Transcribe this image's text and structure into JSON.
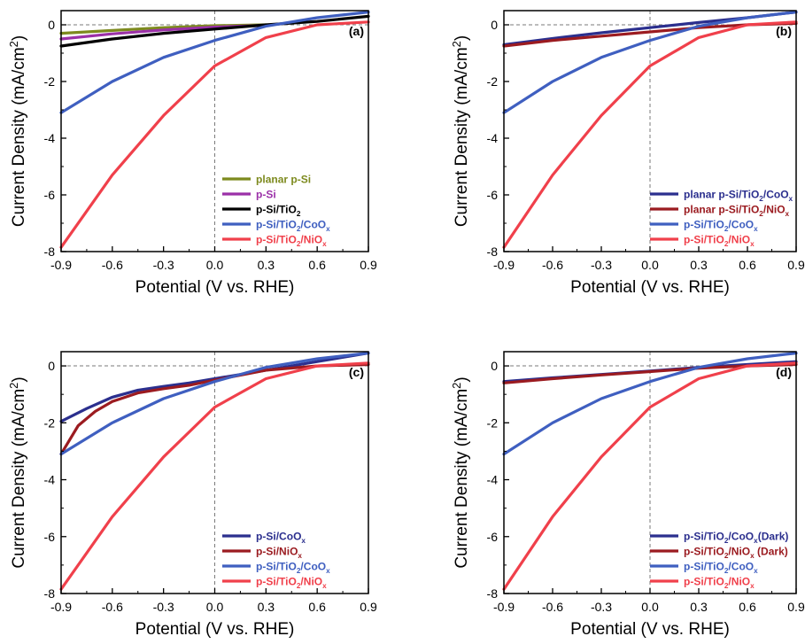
{
  "chart_data": [
    {
      "type": "line",
      "panel_label": "(a)",
      "xlabel": "Potential (V vs. RHE)",
      "ylabel": "Current Density (mA/cm²)",
      "xlim": [
        -0.9,
        0.9
      ],
      "ylim": [
        -8,
        0.5
      ],
      "xticks": [
        "-0.9",
        "-0.6",
        "-0.3",
        "0.0",
        "0.3",
        "0.6",
        "0.9"
      ],
      "yticks": [
        "0",
        "-2",
        "-4",
        "-6",
        "-8"
      ],
      "legend_position": "lower-right",
      "grid": false,
      "series": [
        {
          "name": "planar p-Si",
          "color": "#7d8a1e",
          "x": [
            -0.9,
            -0.6,
            -0.3,
            0.0,
            0.3
          ],
          "y": [
            -0.3,
            -0.2,
            -0.1,
            -0.03,
            0.0
          ]
        },
        {
          "name": "p-Si",
          "color": "#9b30a8",
          "x": [
            -0.9,
            -0.6,
            -0.3,
            0.0,
            0.3
          ],
          "y": [
            -0.5,
            -0.32,
            -0.18,
            -0.08,
            -0.02
          ]
        },
        {
          "name": "p-Si/TiO₂",
          "color": "#000000",
          "x": [
            -0.9,
            -0.6,
            -0.3,
            0.0,
            0.3,
            0.6,
            0.9
          ],
          "y": [
            -0.75,
            -0.5,
            -0.3,
            -0.15,
            0.0,
            0.12,
            0.3
          ]
        },
        {
          "name": "p-Si/TiO₂/CoOₓ",
          "color": "#3f5fc0",
          "x": [
            -0.9,
            -0.6,
            -0.3,
            0.0,
            0.3,
            0.6,
            0.9
          ],
          "y": [
            -3.1,
            -2.0,
            -1.15,
            -0.55,
            -0.05,
            0.25,
            0.45
          ]
        },
        {
          "name": "p-Si/TiO₂/NiOₓ",
          "color": "#f0404b",
          "x": [
            -0.9,
            -0.6,
            -0.3,
            0.0,
            0.3,
            0.6,
            0.9
          ],
          "y": [
            -7.85,
            -5.3,
            -3.2,
            -1.45,
            -0.45,
            0.0,
            0.1
          ]
        }
      ]
    },
    {
      "type": "line",
      "panel_label": "(b)",
      "xlabel": "Potential (V vs. RHE)",
      "ylabel": "Current Density (mA/cm²)",
      "xlim": [
        -0.9,
        0.9
      ],
      "ylim": [
        -8,
        0.5
      ],
      "xticks": [
        "-0.9",
        "-0.6",
        "-0.3",
        "0.0",
        "0.3",
        "0.6",
        "0.9"
      ],
      "yticks": [
        "0",
        "-2",
        "-4",
        "-6",
        "-8"
      ],
      "legend_position": "lower-right",
      "grid": false,
      "series": [
        {
          "name": "planar p-Si/TiO₂/CoOₓ",
          "color": "#2b2f8e",
          "x": [
            -0.9,
            -0.6,
            -0.3,
            0.0,
            0.3,
            0.6,
            0.9
          ],
          "y": [
            -0.7,
            -0.48,
            -0.28,
            -0.1,
            0.08,
            0.25,
            0.45
          ]
        },
        {
          "name": "planar p-Si/TiO₂/NiOₓ",
          "color": "#9b1b20",
          "x": [
            -0.9,
            -0.6,
            -0.3,
            0.0,
            0.3,
            0.6,
            0.9
          ],
          "y": [
            -0.75,
            -0.55,
            -0.4,
            -0.25,
            -0.1,
            0.0,
            0.05
          ]
        },
        {
          "name": "p-Si/TiO₂/CoOₓ",
          "color": "#3f5fc0",
          "x": [
            -0.9,
            -0.6,
            -0.3,
            0.0,
            0.3,
            0.6,
            0.9
          ],
          "y": [
            -3.1,
            -2.0,
            -1.15,
            -0.55,
            -0.05,
            0.25,
            0.45
          ]
        },
        {
          "name": "p-Si/TiO₂/NiOₓ",
          "color": "#f0404b",
          "x": [
            -0.9,
            -0.6,
            -0.3,
            0.0,
            0.3,
            0.6,
            0.9
          ],
          "y": [
            -7.85,
            -5.3,
            -3.2,
            -1.45,
            -0.45,
            0.0,
            0.1
          ]
        }
      ]
    },
    {
      "type": "line",
      "panel_label": "(c)",
      "xlabel": "Potential (V vs. RHE)",
      "ylabel": "Current Density (mA/cm²)",
      "xlim": [
        -0.9,
        0.9
      ],
      "ylim": [
        -8,
        0.5
      ],
      "xticks": [
        "-0.9",
        "-0.6",
        "-0.3",
        "0.0",
        "0.3",
        "0.6",
        "0.9"
      ],
      "yticks": [
        "0",
        "-2",
        "-4",
        "-6",
        "-8"
      ],
      "legend_position": "lower-right",
      "grid": false,
      "series": [
        {
          "name": "p-Si/CoOₓ",
          "color": "#2b2f8e",
          "x": [
            -0.9,
            -0.75,
            -0.6,
            -0.45,
            -0.3,
            -0.15,
            0.0,
            0.3,
            0.6,
            0.9
          ],
          "y": [
            -1.95,
            -1.5,
            -1.1,
            -0.85,
            -0.72,
            -0.6,
            -0.45,
            -0.15,
            0.15,
            0.45
          ]
        },
        {
          "name": "p-Si/NiOₓ",
          "color": "#9b1b20",
          "x": [
            -0.9,
            -0.8,
            -0.7,
            -0.6,
            -0.45,
            -0.3,
            -0.15,
            0.0,
            0.3,
            0.6,
            0.9
          ],
          "y": [
            -3.1,
            -2.1,
            -1.6,
            -1.25,
            -0.95,
            -0.8,
            -0.68,
            -0.5,
            -0.15,
            0.0,
            0.05
          ]
        },
        {
          "name": "p-Si/TiO₂/CoOₓ",
          "color": "#3f5fc0",
          "x": [
            -0.9,
            -0.6,
            -0.3,
            0.0,
            0.3,
            0.6,
            0.9
          ],
          "y": [
            -3.1,
            -2.0,
            -1.15,
            -0.55,
            -0.05,
            0.25,
            0.45
          ]
        },
        {
          "name": "p-Si/TiO₂/NiOₓ",
          "color": "#f0404b",
          "x": [
            -0.9,
            -0.6,
            -0.3,
            0.0,
            0.3,
            0.6,
            0.9
          ],
          "y": [
            -7.85,
            -5.3,
            -3.2,
            -1.45,
            -0.45,
            0.0,
            0.1
          ]
        }
      ]
    },
    {
      "type": "line",
      "panel_label": "(d)",
      "xlabel": "Potential (V vs. RHE)",
      "ylabel": "Current Density (mA/cm²)",
      "xlim": [
        -0.9,
        0.9
      ],
      "ylim": [
        -8,
        0.5
      ],
      "xticks": [
        "-0.9",
        "-0.6",
        "-0.3",
        "0.0",
        "0.3",
        "0.6",
        "0.9"
      ],
      "yticks": [
        "0",
        "-2",
        "-4",
        "-6",
        "-8"
      ],
      "legend_position": "lower-right",
      "grid": false,
      "series": [
        {
          "name": "p-Si/TiO₂/CoOₓ(Dark)",
          "color": "#2b2f8e",
          "x": [
            -0.9,
            -0.6,
            -0.3,
            0.0,
            0.3,
            0.6,
            0.9
          ],
          "y": [
            -0.55,
            -0.42,
            -0.3,
            -0.18,
            -0.05,
            0.05,
            0.15
          ]
        },
        {
          "name": "p-Si/TiO₂/NiOₓ (Dark)",
          "color": "#9b1b20",
          "x": [
            -0.9,
            -0.6,
            -0.3,
            0.0,
            0.3,
            0.6,
            0.9
          ],
          "y": [
            -0.6,
            -0.45,
            -0.32,
            -0.2,
            -0.08,
            0.0,
            0.05
          ]
        },
        {
          "name": "p-Si/TiO₂/CoOₓ",
          "color": "#3f5fc0",
          "x": [
            -0.9,
            -0.6,
            -0.3,
            0.0,
            0.3,
            0.6,
            0.9
          ],
          "y": [
            -3.1,
            -2.0,
            -1.15,
            -0.55,
            -0.05,
            0.25,
            0.45
          ]
        },
        {
          "name": "p-Si/TiO₂/NiOₓ",
          "color": "#f0404b",
          "x": [
            -0.9,
            -0.6,
            -0.3,
            0.0,
            0.3,
            0.6,
            0.9
          ],
          "y": [
            -7.85,
            -5.3,
            -3.2,
            -1.45,
            -0.45,
            0.0,
            0.1
          ]
        }
      ]
    }
  ]
}
